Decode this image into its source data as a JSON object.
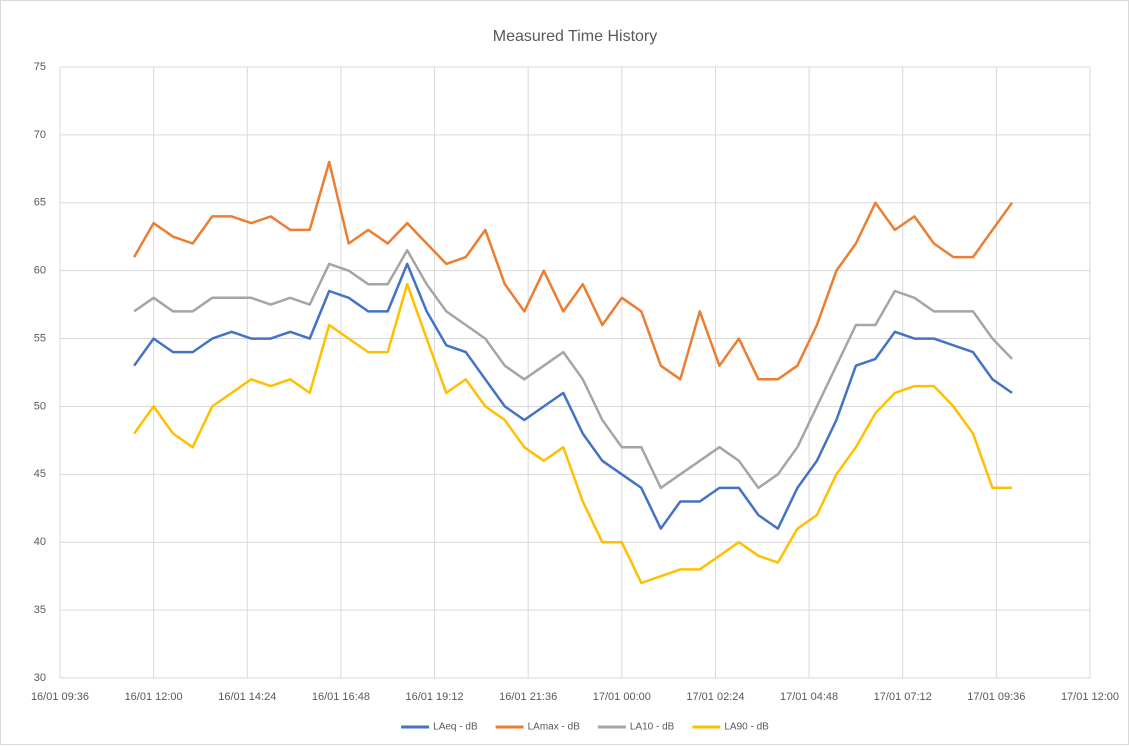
{
  "chart_data": {
    "type": "line",
    "title": "Measured Time History",
    "x": [
      "16/01 11:30",
      "16/01 12:00",
      "16/01 12:30",
      "16/01 13:00",
      "16/01 13:30",
      "16/01 14:00",
      "16/01 14:30",
      "16/01 15:00",
      "16/01 15:30",
      "16/01 16:00",
      "16/01 16:30",
      "16/01 17:00",
      "16/01 17:30",
      "16/01 18:00",
      "16/01 18:30",
      "16/01 19:00",
      "16/01 19:30",
      "16/01 20:00",
      "16/01 20:30",
      "16/01 21:00",
      "16/01 21:30",
      "16/01 22:00",
      "16/01 22:30",
      "16/01 23:00",
      "16/01 23:30",
      "17/01 00:00",
      "17/01 00:30",
      "17/01 01:00",
      "17/01 01:30",
      "17/01 02:00",
      "17/01 02:30",
      "17/01 03:00",
      "17/01 03:30",
      "17/01 04:00",
      "17/01 04:30",
      "17/01 05:00",
      "17/01 05:30",
      "17/01 06:00",
      "17/01 06:30",
      "17/01 07:00",
      "17/01 07:30",
      "17/01 08:00",
      "17/01 08:30",
      "17/01 09:00",
      "17/01 09:30",
      "17/01 10:00"
    ],
    "series": [
      {
        "name": "LAeq - dB",
        "color": "#4472c4",
        "values": [
          53,
          55,
          54,
          54,
          55,
          55.5,
          55,
          55,
          55.5,
          55,
          58.5,
          58,
          57,
          57,
          60.5,
          57,
          54.5,
          54,
          52,
          50,
          49,
          50,
          51,
          48,
          46,
          45,
          44,
          41,
          43,
          43,
          44,
          44,
          42,
          41,
          44,
          46,
          49,
          53,
          53.5,
          55.5,
          55,
          55,
          54.5,
          54,
          52,
          51
        ]
      },
      {
        "name": "LAmax - dB",
        "color": "#ed7d31",
        "values": [
          61,
          63.5,
          62.5,
          62,
          64,
          64,
          63.5,
          64,
          63,
          63,
          68,
          62,
          63,
          62,
          63.5,
          62,
          60.5,
          61,
          63,
          59,
          57,
          60,
          57,
          59,
          56,
          58,
          57,
          53,
          52,
          57,
          53,
          55,
          52,
          52,
          53,
          56,
          60,
          62,
          65,
          63,
          64,
          62,
          61,
          61,
          63,
          65
        ]
      },
      {
        "name": "LA10 - dB",
        "color": "#a5a5a5",
        "values": [
          57,
          58,
          57,
          57,
          58,
          58,
          58,
          57.5,
          58,
          57.5,
          60.5,
          60,
          59,
          59,
          61.5,
          59,
          57,
          56,
          55,
          53,
          52,
          53,
          54,
          52,
          49,
          47,
          47,
          44,
          45,
          46,
          47,
          46,
          44,
          45,
          47,
          50,
          53,
          56,
          56,
          58.5,
          58,
          57,
          57,
          57,
          55,
          53.5
        ]
      },
      {
        "name": "LA90 - dB",
        "color": "#ffc000",
        "values": [
          48,
          50,
          48,
          47,
          50,
          51,
          52,
          51.5,
          52,
          51,
          56,
          55,
          54,
          54,
          59,
          55,
          51,
          52,
          50,
          49,
          47,
          46,
          47,
          43,
          40,
          40,
          37,
          37.5,
          38,
          38,
          39,
          40,
          39,
          38.5,
          41,
          42,
          45,
          47,
          49.5,
          51,
          51.5,
          51.5,
          50,
          48,
          44,
          44
        ]
      }
    ],
    "xlim": [
      "16/01 09:36",
      "17/01 12:00"
    ],
    "xticks": [
      "16/01 09:36",
      "16/01 12:00",
      "16/01 14:24",
      "16/01 16:48",
      "16/01 19:12",
      "16/01 21:36",
      "17/01 00:00",
      "17/01 02:24",
      "17/01 04:48",
      "17/01 07:12",
      "17/01 09:36",
      "17/01 12:00"
    ],
    "ylim": [
      30,
      75
    ],
    "yticks": [
      30,
      35,
      40,
      45,
      50,
      55,
      60,
      65,
      70,
      75
    ],
    "grid": true,
    "legend": "bottom"
  }
}
